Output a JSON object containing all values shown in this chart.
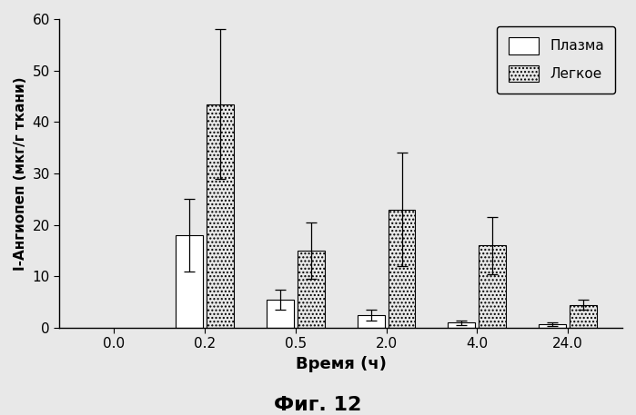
{
  "time_labels": [
    "0.0",
    "0.2",
    "0.5",
    "2.0",
    "4.0",
    "24.0"
  ],
  "plasma_values": [
    0.0,
    18.0,
    5.5,
    2.5,
    1.0,
    0.7
  ],
  "plasma_errors": [
    0.0,
    7.0,
    2.0,
    1.0,
    0.5,
    0.3
  ],
  "lung_values": [
    0.0,
    43.5,
    15.0,
    23.0,
    16.0,
    4.5
  ],
  "lung_errors": [
    0.0,
    14.5,
    5.5,
    11.0,
    5.5,
    1.0
  ],
  "ylabel": "I-Ангиопеп (мкг/г ткани)",
  "xlabel": "Время (ч)",
  "figure_label": "Фиг. 12",
  "legend_plasma": "Плазма",
  "legend_lung": "Легкое",
  "ylim": [
    0,
    60
  ],
  "yticks": [
    0,
    10,
    20,
    30,
    40,
    50,
    60
  ],
  "bar_width": 0.3,
  "plasma_color": "#ffffff",
  "lung_hatch": "....",
  "lung_facecolor": "#e8e8e8",
  "background_color": "#e8e8e8",
  "axis_bg_color": "#e8e8e8"
}
